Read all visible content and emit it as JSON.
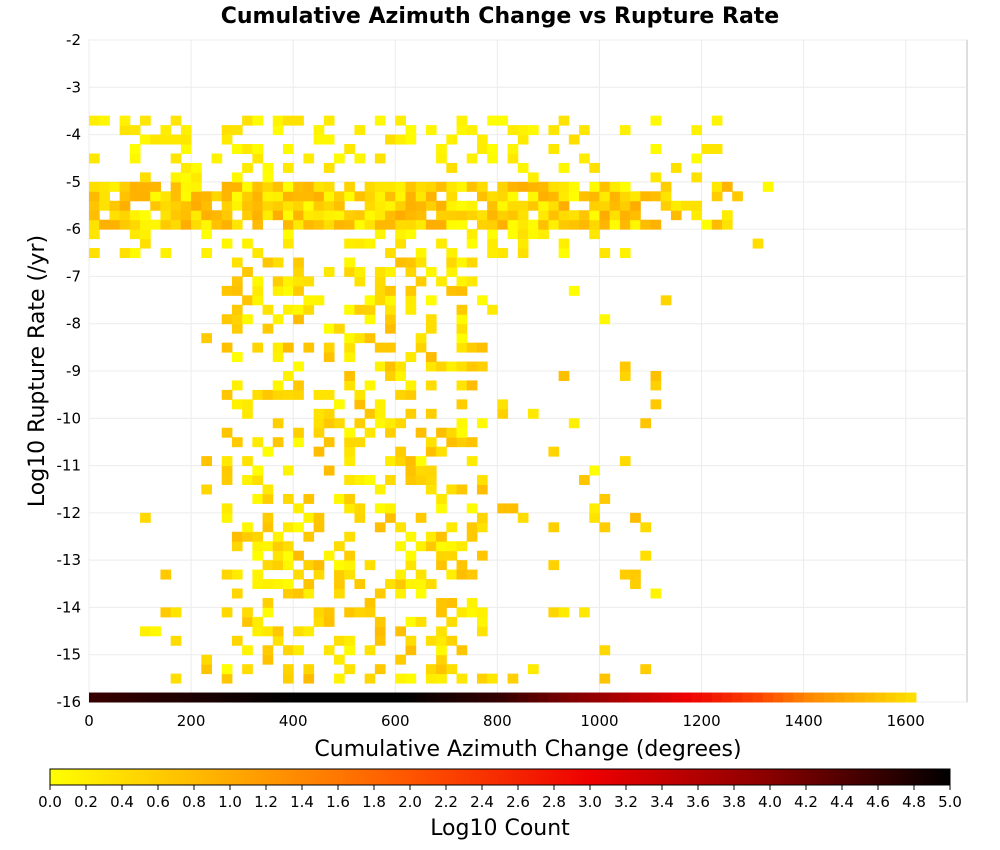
{
  "chart_data": {
    "type": "heatmap",
    "title": "Cumulative Azimuth Change vs Rupture Rate",
    "xlabel": "Cumulative Azimuth Change (degrees)",
    "ylabel": "Log10 Rupture Rate (/yr)",
    "xlim": [
      0,
      1720
    ],
    "ylim": [
      -16,
      -2
    ],
    "x_ticks": [
      0,
      200,
      400,
      600,
      800,
      1000,
      1200,
      1400,
      1600
    ],
    "y_ticks": [
      -2,
      -3,
      -4,
      -5,
      -6,
      -7,
      -8,
      -9,
      -10,
      -11,
      -12,
      -13,
      -14,
      -15,
      -16
    ],
    "grid": true,
    "bin_width_x": 20,
    "bin_height_y": 0.2,
    "colorbar": {
      "label": "Log10 Count",
      "range": [
        0,
        5
      ],
      "ticks": [
        "0.0",
        "0.2",
        "0.4",
        "0.6",
        "0.8",
        "1.0",
        "1.2",
        "1.4",
        "1.6",
        "1.8",
        "2.0",
        "2.2",
        "2.4",
        "2.6",
        "2.8",
        "3.0",
        "3.2",
        "3.4",
        "3.6",
        "3.8",
        "4.0",
        "4.2",
        "4.4",
        "4.6",
        "4.8",
        "5.0"
      ],
      "colors": [
        "#ffff00",
        "#ffaa00",
        "#ff5500",
        "#ee0000",
        "#880000",
        "#000000"
      ]
    },
    "bins": [
      {
        "region": "upper-band",
        "x": [
          0,
          1340
        ],
        "y": [
          -6.6,
          -3.6
        ],
        "log10_count_range": [
          0,
          1.0
        ],
        "densest_near_log10_rate": [
          -6.0,
          -5.0
        ]
      },
      {
        "region": "mid-band",
        "x": [
          100,
          1140
        ],
        "y": [
          -15.6,
          -6.6
        ],
        "log10_count_range": [
          0,
          0.8
        ],
        "densest_x": [
          260,
          760
        ]
      },
      {
        "region": "zero-rate-floor",
        "x": [
          0,
          1620
        ],
        "y": [
          -16,
          -15.8
        ],
        "log10_count_by_x": [
          [
            0,
            4.6
          ],
          [
            200,
            4.8
          ],
          [
            400,
            5.0
          ],
          [
            600,
            5.0
          ],
          [
            800,
            4.6
          ],
          [
            1000,
            3.8
          ],
          [
            1200,
            2.8
          ],
          [
            1300,
            2.2
          ],
          [
            1400,
            1.4
          ],
          [
            1500,
            0.9
          ],
          [
            1600,
            0.4
          ]
        ]
      }
    ]
  }
}
